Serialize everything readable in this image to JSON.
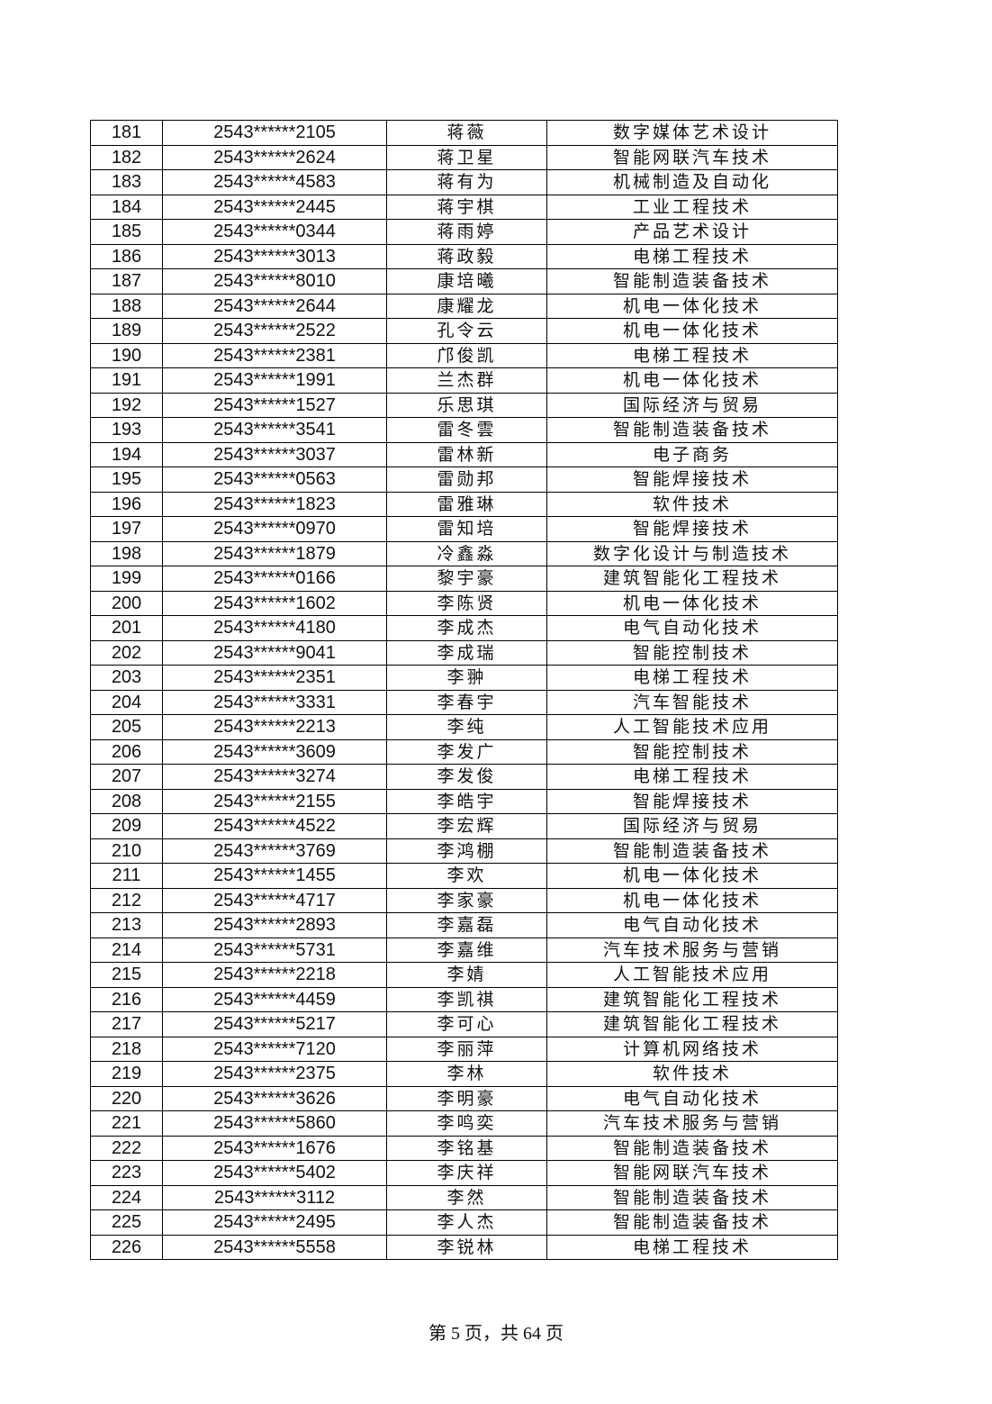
{
  "rows": [
    [
      "181",
      "2543******2105",
      "蒋薇",
      "数字媒体艺术设计"
    ],
    [
      "182",
      "2543******2624",
      "蒋卫星",
      "智能网联汽车技术"
    ],
    [
      "183",
      "2543******4583",
      "蒋有为",
      "机械制造及自动化"
    ],
    [
      "184",
      "2543******2445",
      "蒋宇棋",
      "工业工程技术"
    ],
    [
      "185",
      "2543******0344",
      "蒋雨婷",
      "产品艺术设计"
    ],
    [
      "186",
      "2543******3013",
      "蒋政毅",
      "电梯工程技术"
    ],
    [
      "187",
      "2543******8010",
      "康培曦",
      "智能制造装备技术"
    ],
    [
      "188",
      "2543******2644",
      "康耀龙",
      "机电一体化技术"
    ],
    [
      "189",
      "2543******2522",
      "孔令云",
      "机电一体化技术"
    ],
    [
      "190",
      "2543******2381",
      "邝俊凯",
      "电梯工程技术"
    ],
    [
      "191",
      "2543******1991",
      "兰杰群",
      "机电一体化技术"
    ],
    [
      "192",
      "2543******1527",
      "乐思琪",
      "国际经济与贸易"
    ],
    [
      "193",
      "2543******3541",
      "雷冬雲",
      "智能制造装备技术"
    ],
    [
      "194",
      "2543******3037",
      "雷林新",
      "电子商务"
    ],
    [
      "195",
      "2543******0563",
      "雷勋邦",
      "智能焊接技术"
    ],
    [
      "196",
      "2543******1823",
      "雷雅琳",
      "软件技术"
    ],
    [
      "197",
      "2543******0970",
      "雷知培",
      "智能焊接技术"
    ],
    [
      "198",
      "2543******1879",
      "冷鑫淼",
      "数字化设计与制造技术"
    ],
    [
      "199",
      "2543******0166",
      "黎宇豪",
      "建筑智能化工程技术"
    ],
    [
      "200",
      "2543******1602",
      "李陈贤",
      "机电一体化技术"
    ],
    [
      "201",
      "2543******4180",
      "李成杰",
      "电气自动化技术"
    ],
    [
      "202",
      "2543******9041",
      "李成瑞",
      "智能控制技术"
    ],
    [
      "203",
      "2543******2351",
      "李翀",
      "电梯工程技术"
    ],
    [
      "204",
      "2543******3331",
      "李春宇",
      "汽车智能技术"
    ],
    [
      "205",
      "2543******2213",
      "李纯",
      "人工智能技术应用"
    ],
    [
      "206",
      "2543******3609",
      "李发广",
      "智能控制技术"
    ],
    [
      "207",
      "2543******3274",
      "李发俊",
      "电梯工程技术"
    ],
    [
      "208",
      "2543******2155",
      "李皓宇",
      "智能焊接技术"
    ],
    [
      "209",
      "2543******4522",
      "李宏辉",
      "国际经济与贸易"
    ],
    [
      "210",
      "2543******3769",
      "李鸿棚",
      "智能制造装备技术"
    ],
    [
      "211",
      "2543******1455",
      "李欢",
      "机电一体化技术"
    ],
    [
      "212",
      "2543******4717",
      "李家豪",
      "机电一体化技术"
    ],
    [
      "213",
      "2543******2893",
      "李嘉磊",
      "电气自动化技术"
    ],
    [
      "214",
      "2543******5731",
      "李嘉维",
      "汽车技术服务与营销"
    ],
    [
      "215",
      "2543******2218",
      "李婧",
      "人工智能技术应用"
    ],
    [
      "216",
      "2543******4459",
      "李凯祺",
      "建筑智能化工程技术"
    ],
    [
      "217",
      "2543******5217",
      "李可心",
      "建筑智能化工程技术"
    ],
    [
      "218",
      "2543******7120",
      "李丽萍",
      "计算机网络技术"
    ],
    [
      "219",
      "2543******2375",
      "李林",
      "软件技术"
    ],
    [
      "220",
      "2543******3626",
      "李明豪",
      "电气自动化技术"
    ],
    [
      "221",
      "2543******5860",
      "李鸣奕",
      "汽车技术服务与营销"
    ],
    [
      "222",
      "2543******1676",
      "李铭基",
      "智能制造装备技术"
    ],
    [
      "223",
      "2543******5402",
      "李庆祥",
      "智能网联汽车技术"
    ],
    [
      "224",
      "2543******3112",
      "李然",
      "智能制造装备技术"
    ],
    [
      "225",
      "2543******2495",
      "李人杰",
      "智能制造装备技术"
    ],
    [
      "226",
      "2543******5558",
      "李锐林",
      "电梯工程技术"
    ]
  ],
  "footer": "第 5 页，共 64 页"
}
